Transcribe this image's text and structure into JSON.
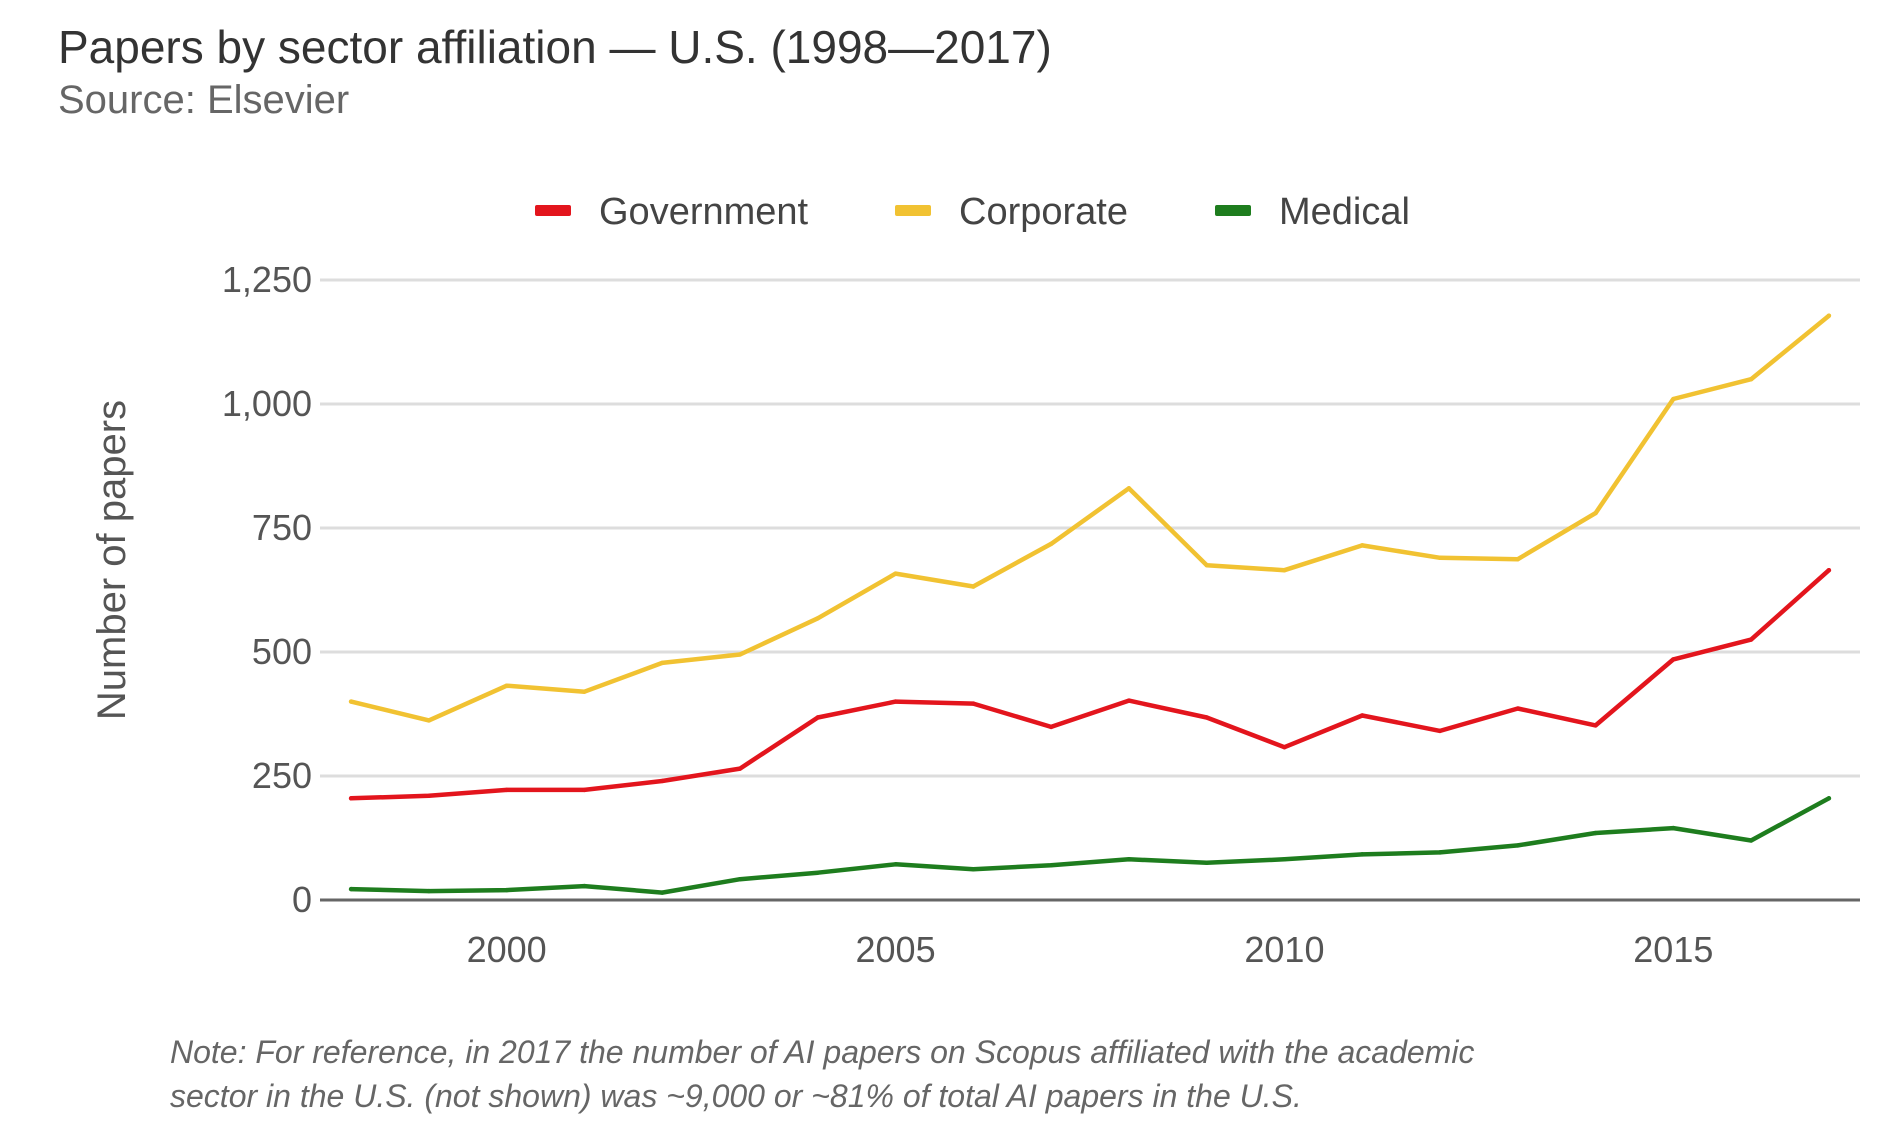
{
  "header": {
    "title": "Papers by sector affiliation — U.S. (1998—2017)",
    "subtitle": "Source: Elsevier"
  },
  "note": {
    "line1": "Note: For reference, in 2017 the number of AI papers on Scopus affiliated with the academic",
    "line2": "sector in the U.S. (not shown) was ~9,000 or ~81% of total AI papers in the U.S."
  },
  "colors": {
    "government": "#e3151d",
    "corporate": "#f1c232",
    "medical": "#1e7d1e",
    "grid": "#dddddd",
    "axis": "#666666"
  },
  "chart_data": {
    "type": "line",
    "title": "Papers by sector affiliation — U.S. (1998—2017)",
    "ylabel": "Number of papers",
    "xlabel": "",
    "x": [
      1998,
      1999,
      2000,
      2001,
      2002,
      2003,
      2004,
      2005,
      2006,
      2007,
      2008,
      2009,
      2010,
      2011,
      2012,
      2013,
      2014,
      2015,
      2016,
      2017
    ],
    "xlim": [
      1997.6,
      2017.4
    ],
    "ylim": [
      0,
      1250
    ],
    "yticks": [
      0,
      250,
      500,
      750,
      1000,
      1250
    ],
    "ytick_labels": [
      "0",
      "250",
      "500",
      "750",
      "1,000",
      "1,250"
    ],
    "xticks": [
      2000,
      2005,
      2010,
      2015
    ],
    "xtick_labels": [
      "2000",
      "2005",
      "2010",
      "2015"
    ],
    "grid": true,
    "legend_position": "top-center",
    "series": [
      {
        "name": "Government",
        "color": "#e3151d",
        "values": [
          205,
          210,
          222,
          222,
          240,
          265,
          368,
          400,
          396,
          349,
          402,
          368,
          308,
          372,
          341,
          386,
          352,
          485,
          525,
          665
        ]
      },
      {
        "name": "Corporate",
        "color": "#f1c232",
        "values": [
          400,
          362,
          432,
          420,
          478,
          495,
          568,
          658,
          632,
          718,
          830,
          675,
          665,
          715,
          690,
          687,
          780,
          1010,
          1050,
          1178
        ]
      },
      {
        "name": "Medical",
        "color": "#1e7d1e",
        "values": [
          22,
          18,
          20,
          28,
          15,
          42,
          55,
          72,
          62,
          70,
          82,
          75,
          82,
          92,
          96,
          110,
          135,
          145,
          120,
          205
        ]
      }
    ]
  }
}
